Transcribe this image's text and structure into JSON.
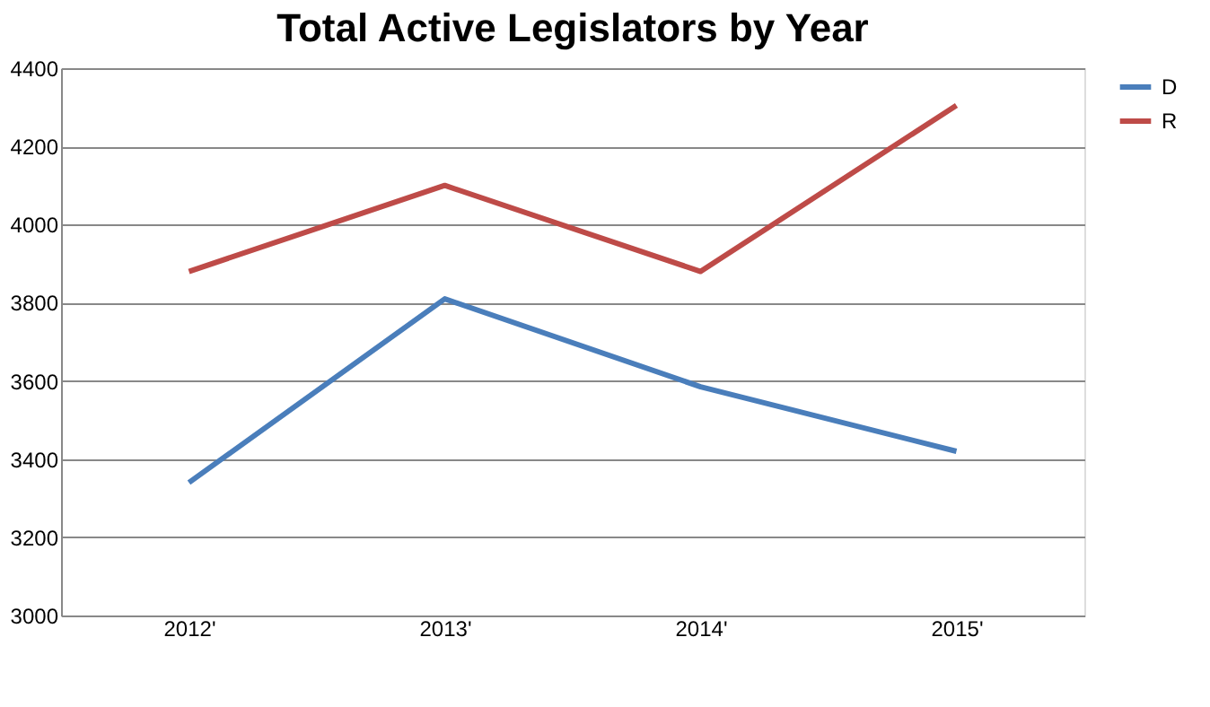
{
  "chart_data": {
    "type": "line",
    "title": "Total Active Legislators by Year",
    "categories": [
      "2012'",
      "2013'",
      "2014'",
      "2015'"
    ],
    "series": [
      {
        "name": "D",
        "color": "#4a7ebb",
        "values": [
          3340,
          3810,
          3585,
          3420
        ]
      },
      {
        "name": "R",
        "color": "#be4b48",
        "values": [
          3880,
          4100,
          3880,
          4305
        ]
      }
    ],
    "ylim": [
      3000,
      4400
    ],
    "yticks": [
      3000,
      3200,
      3400,
      3600,
      3800,
      4000,
      4200,
      4400
    ],
    "grid": "y",
    "legend": "right",
    "marker": "none",
    "line_style": "solid"
  }
}
